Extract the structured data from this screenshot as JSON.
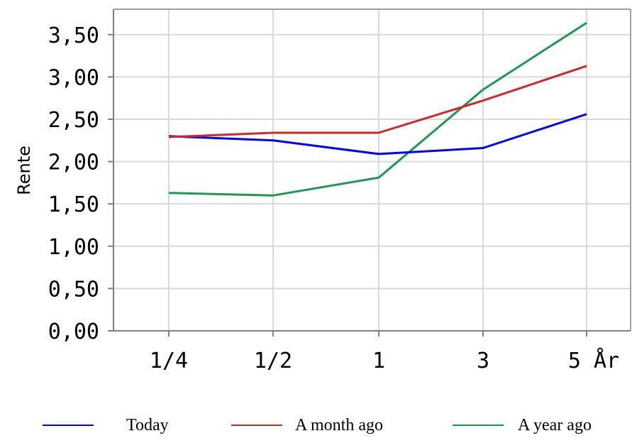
{
  "chart_data": {
    "type": "line",
    "categories": [
      "1/4",
      "1/2",
      "1",
      "3",
      "5 År"
    ],
    "ylabel": "Rente",
    "xlabel": "",
    "ylim": [
      0,
      3.8
    ],
    "yticks": [
      "0,00",
      "0,50",
      "1,00",
      "1,50",
      "2,00",
      "2,50",
      "3,00",
      "3,50"
    ],
    "ytick_values": [
      0,
      0.5,
      1.0,
      1.5,
      2.0,
      2.5,
      3.0,
      3.5
    ],
    "grid": true,
    "legend_position": "bottom",
    "series": [
      {
        "name": "Today",
        "color": "#0000ff",
        "values": [
          2.3,
          2.25,
          2.09,
          2.16,
          2.56
        ]
      },
      {
        "name": "A month ago",
        "color": "#d02828",
        "values": [
          2.29,
          2.34,
          2.34,
          2.72,
          3.13
        ]
      },
      {
        "name": "A year ago",
        "color": "#1a9a50",
        "values": [
          1.63,
          1.6,
          1.81,
          2.85,
          3.64
        ]
      }
    ]
  }
}
